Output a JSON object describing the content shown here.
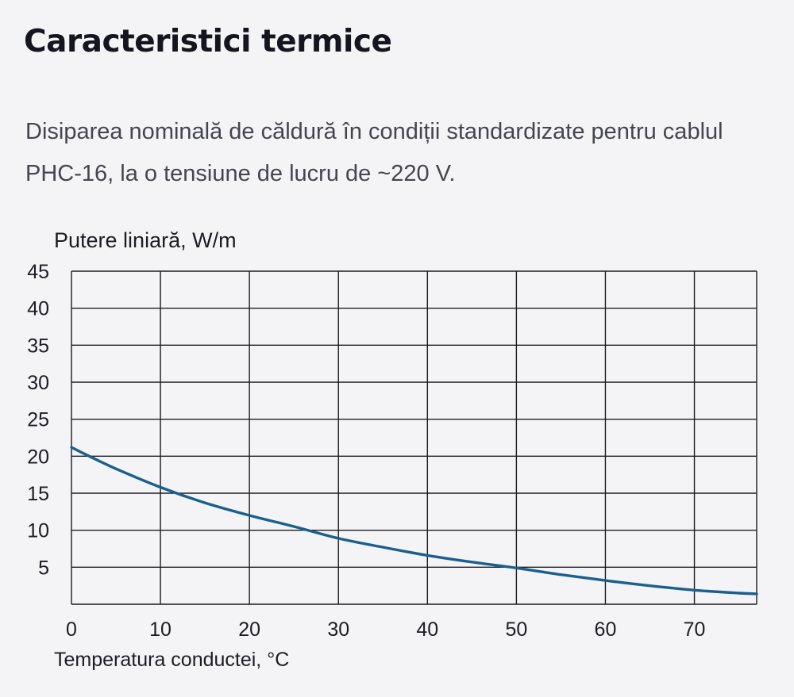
{
  "page": {
    "title": "Caracteristici termice",
    "description": "Disiparea nominală de căldură în condiții standardizate pentru cablul PHC-16, la o tensiune de lucru de ~220 V."
  },
  "colors": {
    "background": "#f4f4f6",
    "curve": "#1a5f8e",
    "grid": "#1c1c24"
  },
  "chart_data": {
    "type": "line",
    "title": "",
    "xlabel": "Temperatura conductei, °C",
    "ylabel": "Putere liniară, W/m",
    "xlim": [
      0,
      77
    ],
    "ylim": [
      0,
      45
    ],
    "x_ticks": [
      0,
      10,
      20,
      30,
      40,
      50,
      60,
      70
    ],
    "y_ticks": [
      5,
      10,
      15,
      20,
      25,
      30,
      35,
      40,
      45
    ],
    "grid": true,
    "legend": "none",
    "series": [
      {
        "x": [
          0,
          2,
          5,
          10,
          15,
          20,
          25,
          30,
          35,
          40,
          45,
          50,
          55,
          60,
          65,
          70,
          75,
          77
        ],
        "values": [
          21.2,
          20.0,
          18.3,
          15.8,
          13.7,
          12.0,
          10.5,
          8.9,
          7.7,
          6.6,
          5.7,
          4.9,
          4.0,
          3.2,
          2.5,
          1.9,
          1.5,
          1.4
        ]
      }
    ]
  }
}
